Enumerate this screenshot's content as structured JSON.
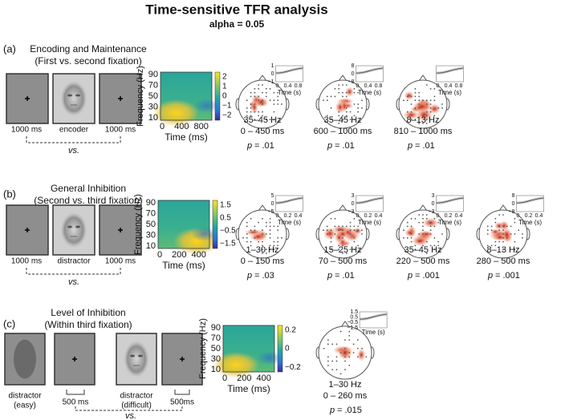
{
  "header": {
    "title": "Time-sensitive TFR analysis",
    "subtitle": "alpha = 0.05"
  },
  "panels": [
    {
      "letter": "(a)",
      "title": "Encoding and Maintenance",
      "subtitle": "(First vs. second fixation)",
      "stimuli": [
        [
          "1000 ms"
        ],
        [
          "encoder"
        ],
        [
          "1000 ms"
        ]
      ],
      "vs": "vs.",
      "tfr": {
        "y_label": "Frequency (Hz)",
        "x_label": "Time (ms)",
        "yticks": [
          "90",
          "70",
          "50",
          "30",
          "10"
        ],
        "xticks": [
          "0",
          "400",
          "800"
        ],
        "cbar_ticks": [
          "2",
          "1",
          "0",
          "−1",
          "−2"
        ]
      },
      "topos": [
        {
          "freq": "35–45 Hz",
          "time": "0 – 450 ms",
          "p_symbol": "p",
          "p_value": "= .01",
          "inset": {
            "yticks": [
              "1",
              "0",
              "−1"
            ],
            "xticks": [
              "0",
              "0.4",
              "0.8"
            ],
            "x_label": "Time (s)"
          }
        },
        {
          "freq": "35–45 Hz",
          "time": "600 – 1000 ms",
          "p_symbol": "p",
          "p_value": "= .01",
          "inset": {
            "yticks": [
              "8",
              "0",
              "−8"
            ],
            "xticks": [
              "0",
              "0.4",
              "0.8"
            ],
            "x_label": "Time (s)"
          }
        },
        {
          "freq": "8–13 Hz",
          "time": "810 – 1000 ms",
          "p_symbol": "p",
          "p_value": "= .01",
          "inset": {
            "yticks": [],
            "xticks": [
              "0",
              "0.4",
              "0.8"
            ],
            "x_label": "Time (s)"
          }
        }
      ]
    },
    {
      "letter": "(b)",
      "title": "General Inhibition",
      "subtitle": "(Second vs. third fixation)",
      "stimuli": [
        [
          "1000 ms"
        ],
        [
          "distractor"
        ],
        [
          "1000 ms"
        ]
      ],
      "vs": "vs.",
      "tfr": {
        "y_label": "Frequency (Hz)",
        "x_label": "Time (ms)",
        "yticks": [
          "90",
          "70",
          "50",
          "30",
          "10"
        ],
        "xticks": [
          "0",
          "200",
          "400"
        ],
        "cbar_ticks": [
          "1.5",
          "0.5",
          "−0.5",
          "−1.5"
        ]
      },
      "topos": [
        {
          "freq": "1–30 Hz",
          "time": "0 – 150 ms",
          "p_symbol": "p",
          "p_value": "= .03",
          "inset": {
            "yticks": [
              "5",
              "0",
              "−5"
            ],
            "xticks": [
              "0",
              "0.2",
              "0.4"
            ],
            "x_label": "Time (s)"
          }
        },
        {
          "freq": "15–25 Hz",
          "time": "70 – 500 ms",
          "p_symbol": "p",
          "p_value": "= .01",
          "inset": {
            "yticks": [
              "3",
              "0",
              "−3"
            ],
            "xticks": [
              "0",
              "0.2",
              "0.4"
            ],
            "x_label": "Time (s)"
          }
        },
        {
          "freq": "35–45 Hz",
          "time": "220 – 500 ms",
          "p_symbol": "p",
          "p_value": "= .001",
          "inset": {
            "yticks": [
              "3",
              "0",
              "−3"
            ],
            "xticks": [
              "0",
              "0.2",
              "0.4"
            ],
            "x_label": "Time (s)"
          }
        },
        {
          "freq": "8–13 Hz",
          "time": "280 – 500 ms",
          "p_symbol": "p",
          "p_value": "= .001",
          "inset": {
            "yticks": [
              "8",
              "0",
              "−8"
            ],
            "xticks": [
              "0",
              "0.2",
              "0.4"
            ],
            "x_label": "Time (s)"
          }
        }
      ]
    },
    {
      "letter": "(c)",
      "title": "Level of Inhibition",
      "subtitle": "(Within third fixation)",
      "stimuli": [
        [
          "distractor",
          "(easy)"
        ],
        [
          "500 ms"
        ],
        [
          "distractor",
          "(difficult)"
        ],
        [
          "500ms"
        ]
      ],
      "vs": "vs.",
      "tfr": {
        "y_label": "Frequency (Hz)",
        "x_label": "Time (ms)",
        "yticks": [
          "90",
          "70",
          "50",
          "30",
          "10"
        ],
        "xticks": [
          "0",
          "200",
          "400"
        ],
        "cbar_ticks": [
          "0.2",
          "0",
          "−0.2"
        ]
      },
      "topos": [
        {
          "freq": "1–30 Hz",
          "time": "0 – 260 ms",
          "p_symbol": "p",
          "p_value": "= .015",
          "inset": {
            "yticks": [
              "1.5",
              "0.5",
              "−0.5",
              "−1.5"
            ],
            "xticks": [],
            "x_label": "Time (s)"
          }
        }
      ]
    }
  ]
}
